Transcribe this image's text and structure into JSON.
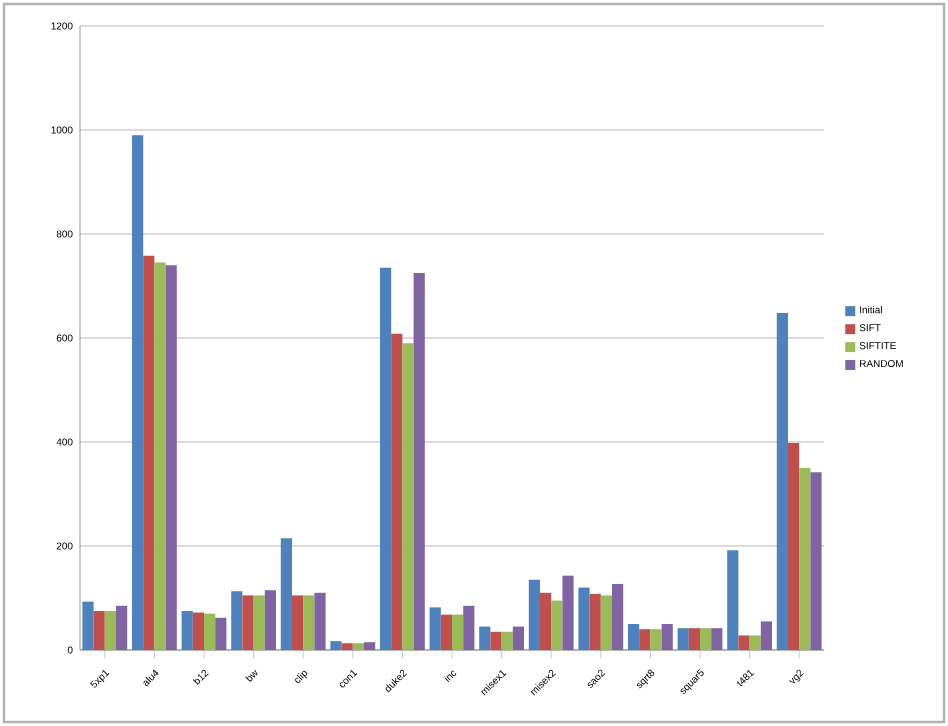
{
  "chart_data": {
    "type": "bar",
    "categories": [
      "5xp1",
      "alu4",
      "b12",
      "bw",
      "clip",
      "con1",
      "duke2",
      "inc",
      "misex1",
      "misex2",
      "sao2",
      "sqrt8",
      "squar5",
      "t481",
      "vg2"
    ],
    "series": [
      {
        "name": "Initial",
        "color": "#4f81bd",
        "values": [
          93,
          990,
          75,
          113,
          215,
          17,
          735,
          82,
          45,
          135,
          120,
          50,
          42,
          192,
          648
        ]
      },
      {
        "name": "SIFT",
        "color": "#c0504d",
        "values": [
          75,
          758,
          72,
          105,
          105,
          13,
          608,
          68,
          35,
          110,
          108,
          40,
          42,
          28,
          398
        ]
      },
      {
        "name": "SIFTITE",
        "color": "#9bbb59",
        "values": [
          75,
          745,
          70,
          105,
          105,
          13,
          590,
          68,
          35,
          95,
          105,
          40,
          42,
          28,
          350
        ]
      },
      {
        "name": "RANDOM",
        "color": "#8064a2",
        "values": [
          85,
          740,
          62,
          115,
          110,
          15,
          725,
          85,
          45,
          143,
          127,
          50,
          42,
          55,
          342
        ]
      }
    ],
    "ylim": [
      0,
      1200
    ],
    "yticks": [
      0,
      200,
      400,
      600,
      800,
      1000,
      1200
    ],
    "grid": "y",
    "legend": "right"
  }
}
